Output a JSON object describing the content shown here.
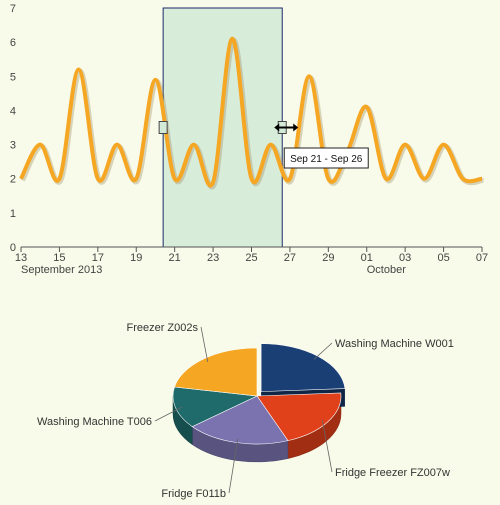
{
  "line_chart": {
    "type": "line",
    "ylim": [
      0,
      7
    ],
    "y_ticks": [
      "0",
      "1",
      "2",
      "3",
      "4",
      "5",
      "6",
      "7"
    ],
    "x_ticks": [
      "13",
      "15",
      "17",
      "19",
      "21",
      "23",
      "25",
      "27",
      "29",
      "01",
      "03",
      "05",
      "07"
    ],
    "x_sublabels": [
      {
        "text": "September 2013",
        "at_tick": 0
      },
      {
        "text": "October",
        "at_tick": 9
      }
    ],
    "color": "#f5a623",
    "selection_range_label": "Sep 21 - Sep 26",
    "selection_color": "#d4ead8"
  },
  "chart_data": [
    {
      "type": "line",
      "x": [
        "2013-09-13",
        "2013-09-14",
        "2013-09-15",
        "2013-09-16",
        "2013-09-17",
        "2013-09-18",
        "2013-09-19",
        "2013-09-20",
        "2013-09-21",
        "2013-09-22",
        "2013-09-23",
        "2013-09-24",
        "2013-09-25",
        "2013-09-26",
        "2013-09-27",
        "2013-09-28",
        "2013-09-29",
        "2013-09-30",
        "2013-10-01",
        "2013-10-02",
        "2013-10-03",
        "2013-10-04",
        "2013-10-05",
        "2013-10-06",
        "2013-10-07"
      ],
      "values": [
        2,
        3,
        2,
        5.2,
        2,
        3,
        2,
        4.9,
        2,
        3,
        1.9,
        6.1,
        2,
        3,
        2,
        5,
        2,
        2.8,
        4.1,
        2,
        3,
        2,
        3,
        2,
        2
      ],
      "ylim": [
        0,
        7
      ],
      "selection": {
        "from": "2013-09-21",
        "to": "2013-09-26"
      }
    },
    {
      "type": "pie",
      "slices": [
        {
          "name": "Washing Machine W001",
          "value": 24,
          "color": "#1a3f75"
        },
        {
          "name": "Fridge Freezer FZ007w",
          "value": 20,
          "color": "#e0401a"
        },
        {
          "name": "Fridge F011b",
          "value": 20,
          "color": "#7a73b0"
        },
        {
          "name": "Washing Machine T006",
          "value": 14,
          "color": "#1f6b6b"
        },
        {
          "name": "Freezer Z002s",
          "value": 22,
          "color": "#f5a623"
        }
      ]
    }
  ]
}
